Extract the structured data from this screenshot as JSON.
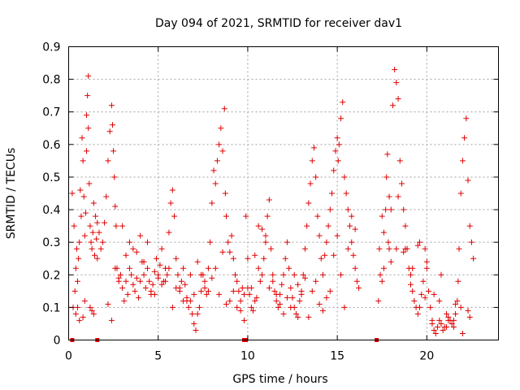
{
  "chart_data": {
    "type": "scatter",
    "title": "Day 094 of 2021, SRMTID for receiver dav1",
    "xlabel": "GPS time / hours",
    "ylabel": "SRMTID / TECUs",
    "xlim": [
      0,
      24
    ],
    "ylim": [
      0,
      0.9
    ],
    "xticks": [
      0,
      5,
      10,
      15,
      20
    ],
    "xtick_labels": [
      "0",
      "5",
      "10",
      "15",
      "20"
    ],
    "yticks": [
      0,
      0.1,
      0.2,
      0.3,
      0.4,
      0.5,
      0.6,
      0.7,
      0.8,
      0.9
    ],
    "ytick_labels": [
      "0",
      "0.1",
      "0.2",
      "0.3",
      "0.4",
      "0.5",
      "0.6",
      "0.7",
      "0.8",
      "0.9"
    ],
    "grid": true,
    "marker": "+",
    "color": "#e00000",
    "series": [
      {
        "name": "SRMTID",
        "x": [
          0.2,
          0.3,
          0.35,
          0.4,
          0.45,
          0.5,
          0.55,
          0.6,
          0.65,
          0.7,
          0.75,
          0.8,
          0.85,
          0.9,
          0.95,
          1.0,
          1.0,
          1.05,
          1.1,
          1.1,
          1.15,
          1.2,
          1.25,
          1.3,
          1.35,
          1.4,
          1.45,
          1.5,
          1.55,
          1.6,
          1.7,
          1.8,
          1.9,
          2.0,
          2.1,
          2.2,
          2.3,
          2.4,
          2.45,
          2.5,
          2.55,
          2.6,
          2.65,
          2.7,
          2.8,
          2.9,
          3.0,
          3.1,
          3.2,
          3.3,
          3.4,
          3.5,
          3.6,
          3.7,
          3.8,
          3.9,
          4.0,
          4.1,
          4.2,
          4.3,
          4.4,
          4.5,
          4.6,
          4.7,
          4.8,
          4.9,
          5.0,
          5.1,
          5.2,
          5.3,
          5.4,
          5.5,
          5.6,
          5.7,
          5.8,
          5.9,
          6.0,
          6.1,
          6.2,
          6.3,
          6.4,
          6.5,
          6.6,
          6.7,
          6.8,
          6.9,
          7.0,
          7.1,
          7.2,
          7.3,
          7.4,
          7.5,
          7.6,
          7.7,
          7.8,
          7.9,
          8.0,
          8.1,
          8.2,
          8.3,
          8.4,
          8.5,
          8.6,
          8.7,
          8.75,
          8.8,
          8.9,
          9.0,
          9.1,
          9.2,
          9.3,
          9.4,
          9.5,
          9.6,
          9.7,
          9.8,
          9.9,
          10.0,
          10.1,
          10.2,
          10.3,
          10.4,
          10.5,
          10.6,
          10.7,
          10.8,
          10.9,
          11.0,
          11.1,
          11.2,
          11.3,
          11.4,
          11.5,
          11.6,
          11.7,
          11.8,
          11.9,
          12.0,
          12.1,
          12.2,
          12.3,
          12.4,
          12.5,
          12.6,
          12.7,
          12.8,
          12.9,
          13.0,
          13.1,
          13.2,
          13.3,
          13.4,
          13.5,
          13.6,
          13.7,
          13.8,
          13.9,
          14.0,
          14.1,
          14.2,
          14.3,
          14.4,
          14.5,
          14.6,
          14.7,
          14.8,
          14.9,
          15.0,
          15.05,
          15.1,
          15.2,
          15.3,
          15.4,
          15.5,
          15.6,
          15.7,
          15.8,
          15.9,
          16.0,
          16.1,
          16.2,
          17.3,
          17.35,
          17.4,
          17.5,
          17.6,
          17.7,
          17.75,
          17.8,
          17.85,
          17.9,
          18.0,
          18.1,
          18.2,
          18.3,
          18.4,
          18.5,
          18.6,
          18.7,
          18.8,
          18.9,
          19.0,
          19.1,
          19.2,
          19.3,
          19.4,
          19.5,
          19.6,
          19.7,
          19.8,
          19.9,
          20.0,
          20.1,
          20.2,
          20.3,
          20.4,
          20.5,
          20.6,
          20.7,
          20.8,
          20.9,
          21.0,
          21.1,
          21.2,
          21.3,
          21.4,
          21.5,
          21.6,
          21.7,
          21.75,
          21.8,
          21.9,
          22.0,
          22.1,
          22.2,
          22.3,
          22.4,
          22.5,
          22.6,
          0.25,
          0.4,
          0.6,
          0.8,
          1.2,
          1.4,
          1.6,
          2.2,
          2.6,
          3.0,
          3.4,
          3.8,
          4.2,
          4.6,
          5.0,
          5.4,
          5.8,
          6.2,
          6.6,
          7.0,
          7.4,
          7.8,
          8.2,
          8.6,
          9.0,
          9.4,
          9.8,
          10.2,
          10.6,
          11.0,
          11.4,
          11.8,
          12.2,
          12.6,
          13.0,
          13.4,
          13.8,
          14.2,
          14.6,
          15.0,
          15.4,
          15.8,
          17.6,
          18.0,
          18.4,
          18.8,
          19.2,
          19.6,
          20.0,
          20.4,
          20.8,
          21.2,
          21.6,
          22.0,
          22.4,
          0.5,
          0.9,
          1.3,
          2.4,
          2.8,
          3.2,
          3.6,
          4.0,
          4.4,
          4.8,
          5.2,
          5.6,
          6.0,
          6.4,
          6.8,
          7.2,
          7.6,
          8.0,
          8.4,
          8.8,
          9.2,
          9.6,
          10.0,
          10.4,
          10.8,
          11.2,
          11.6,
          12.0,
          12.4,
          12.8,
          13.2,
          13.6,
          14.0,
          14.4,
          14.8,
          15.2,
          15.6,
          16.0,
          17.5,
          17.9,
          18.3,
          18.7,
          19.1,
          19.5,
          19.9,
          20.3,
          20.7,
          21.1,
          21.5,
          21.9,
          22.3
        ],
        "y": [
          0.45,
          0.35,
          0.15,
          0.22,
          0.28,
          0.18,
          0.25,
          0.3,
          0.46,
          0.38,
          0.62,
          0.55,
          0.44,
          0.32,
          0.39,
          0.58,
          0.69,
          0.75,
          0.81,
          0.65,
          0.48,
          0.35,
          0.3,
          0.28,
          0.33,
          0.42,
          0.26,
          0.38,
          0.31,
          0.25,
          0.33,
          0.28,
          0.3,
          0.36,
          0.44,
          0.55,
          0.64,
          0.72,
          0.66,
          0.58,
          0.5,
          0.41,
          0.35,
          0.22,
          0.18,
          0.2,
          0.16,
          0.12,
          0.18,
          0.14,
          0.22,
          0.2,
          0.17,
          0.15,
          0.19,
          0.13,
          0.18,
          0.24,
          0.2,
          0.16,
          0.22,
          0.18,
          0.14,
          0.17,
          0.21,
          0.25,
          0.19,
          0.23,
          0.28,
          0.18,
          0.22,
          0.2,
          0.33,
          0.42,
          0.46,
          0.38,
          0.25,
          0.2,
          0.15,
          0.18,
          0.22,
          0.17,
          0.13,
          0.1,
          0.12,
          0.08,
          0.05,
          0.03,
          0.08,
          0.1,
          0.15,
          0.2,
          0.18,
          0.14,
          0.22,
          0.3,
          0.42,
          0.52,
          0.48,
          0.55,
          0.6,
          0.65,
          0.58,
          0.71,
          0.45,
          0.38,
          0.3,
          0.27,
          0.32,
          0.25,
          0.2,
          0.18,
          0.15,
          0.12,
          0.16,
          0.14,
          0.38,
          0.25,
          0.14,
          0.1,
          0.09,
          0.12,
          0.13,
          0.22,
          0.18,
          0.2,
          0.25,
          0.32,
          0.38,
          0.43,
          0.28,
          0.2,
          0.15,
          0.12,
          0.1,
          0.14,
          0.17,
          0.2,
          0.25,
          0.3,
          0.22,
          0.16,
          0.13,
          0.1,
          0.08,
          0.07,
          0.12,
          0.15,
          0.2,
          0.28,
          0.35,
          0.42,
          0.48,
          0.55,
          0.59,
          0.5,
          0.38,
          0.32,
          0.25,
          0.2,
          0.26,
          0.3,
          0.35,
          0.4,
          0.45,
          0.52,
          0.58,
          0.62,
          0.55,
          0.6,
          0.68,
          0.73,
          0.5,
          0.45,
          0.4,
          0.35,
          0.3,
          0.26,
          0.22,
          0.18,
          0.16,
          0.12,
          0.28,
          0.2,
          0.18,
          0.33,
          0.4,
          0.5,
          0.57,
          0.3,
          0.28,
          0.24,
          0.72,
          0.83,
          0.79,
          0.74,
          0.55,
          0.48,
          0.4,
          0.35,
          0.28,
          0.22,
          0.2,
          0.15,
          0.12,
          0.1,
          0.08,
          0.1,
          0.14,
          0.18,
          0.28,
          0.22,
          0.15,
          0.1,
          0.05,
          0.03,
          0.02,
          0.04,
          0.06,
          0.05,
          0.03,
          0.04,
          0.08,
          0.07,
          0.06,
          0.05,
          0.04,
          0.08,
          0.12,
          0.18,
          0.28,
          0.45,
          0.55,
          0.62,
          0.68,
          0.49,
          0.35,
          0.3,
          0.25,
          0.1,
          0.08,
          0.06,
          0.07,
          0.1,
          0.08,
          0.36,
          0.11,
          0.22,
          0.35,
          0.3,
          0.27,
          0.24,
          0.15,
          0.2,
          0.18,
          0.1,
          0.16,
          0.12,
          0.14,
          0.2,
          0.15,
          0.22,
          0.27,
          0.12,
          0.1,
          0.06,
          0.16,
          0.35,
          0.3,
          0.18,
          0.11,
          0.13,
          0.2,
          0.14,
          0.07,
          0.18,
          0.09,
          0.15,
          0.32,
          0.1,
          0.38,
          0.22,
          0.4,
          0.44,
          0.28,
          0.22,
          0.3,
          0.24,
          0.14,
          0.2,
          0.06,
          0.11,
          0.02,
          0.07,
          0.1,
          0.12,
          0.09,
          0.06,
          0.19,
          0.26,
          0.28,
          0.32,
          0.3,
          0.14,
          0.17,
          0.22,
          0.16,
          0.12,
          0.2,
          0.24,
          0.16,
          0.19,
          0.14,
          0.11,
          0.15,
          0.09,
          0.16,
          0.26,
          0.34,
          0.16,
          0.14,
          0.08,
          0.1,
          0.17,
          0.19,
          0.15,
          0.11,
          0.13,
          0.26,
          0.2,
          0.28,
          0.34,
          0.38,
          0.44,
          0.28,
          0.27,
          0.17,
          0.29,
          0.13,
          0.06,
          0.12,
          0.04,
          0.06,
          0.1,
          0.09
        ]
      }
    ],
    "baseline_markers": {
      "x": [
        0.2,
        1.6,
        9.8,
        9.9,
        17.2
      ],
      "y": [
        0,
        0,
        0,
        0,
        0
      ]
    }
  }
}
